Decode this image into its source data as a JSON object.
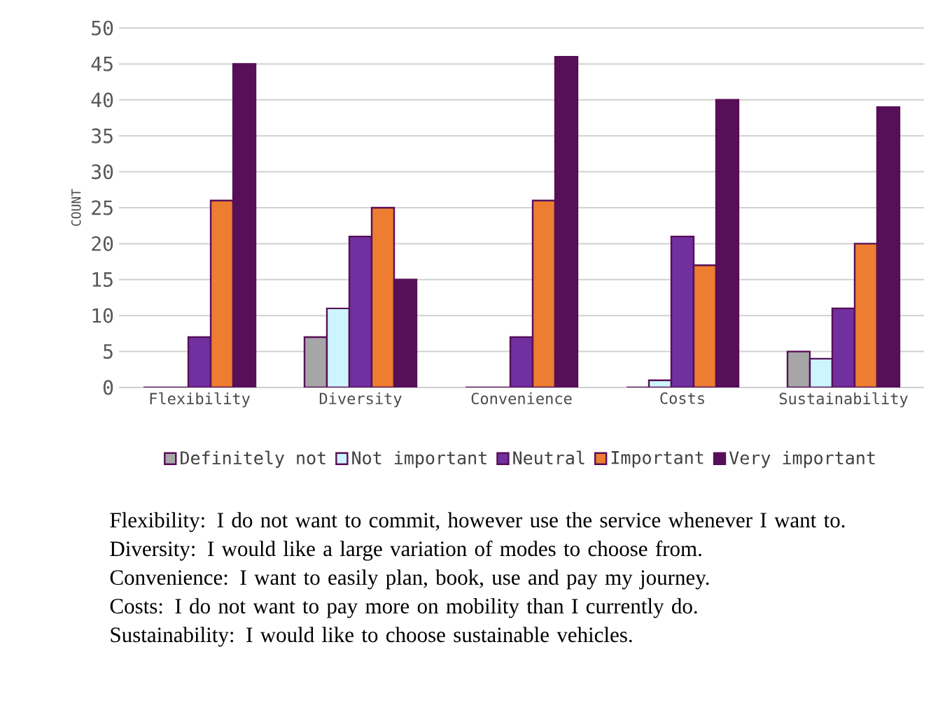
{
  "chart_data": {
    "type": "bar",
    "ylabel": "COUNT",
    "categories": [
      "Flexibility",
      "Diversity",
      "Convenience",
      "Costs",
      "Sustainability"
    ],
    "series": [
      {
        "name": "Definitely not",
        "color": "#a6a6a6",
        "values": [
          0,
          7,
          0,
          0,
          5
        ]
      },
      {
        "name": "Not important",
        "color": "#ccf5ff",
        "values": [
          0,
          11,
          0,
          1,
          4
        ]
      },
      {
        "name": "Neutral",
        "color": "#7030a0",
        "values": [
          7,
          21,
          7,
          21,
          11
        ]
      },
      {
        "name": "Important",
        "color": "#ed7d31",
        "values": [
          26,
          25,
          26,
          17,
          20
        ]
      },
      {
        "name": "Very important",
        "color": "#570f57",
        "values": [
          45,
          15,
          46,
          40,
          39
        ]
      }
    ],
    "ylim": [
      0,
      50
    ],
    "yticks": [
      0,
      5,
      10,
      15,
      20,
      25,
      30,
      35,
      40,
      45,
      50
    ],
    "grid": "y",
    "legend": "bottom",
    "annotations": [
      "Flexibility: I do not want to commit, however use the service whenever I want to.",
      "Diversity: I would like a large variation of modes to choose from.",
      "Convenience: I want to easily plan, book, use and pay my journey.",
      "Costs: I do not want to pay more on mobility than I currently do.",
      "Sustainability: I would like to choose sustainable vehicles."
    ]
  }
}
